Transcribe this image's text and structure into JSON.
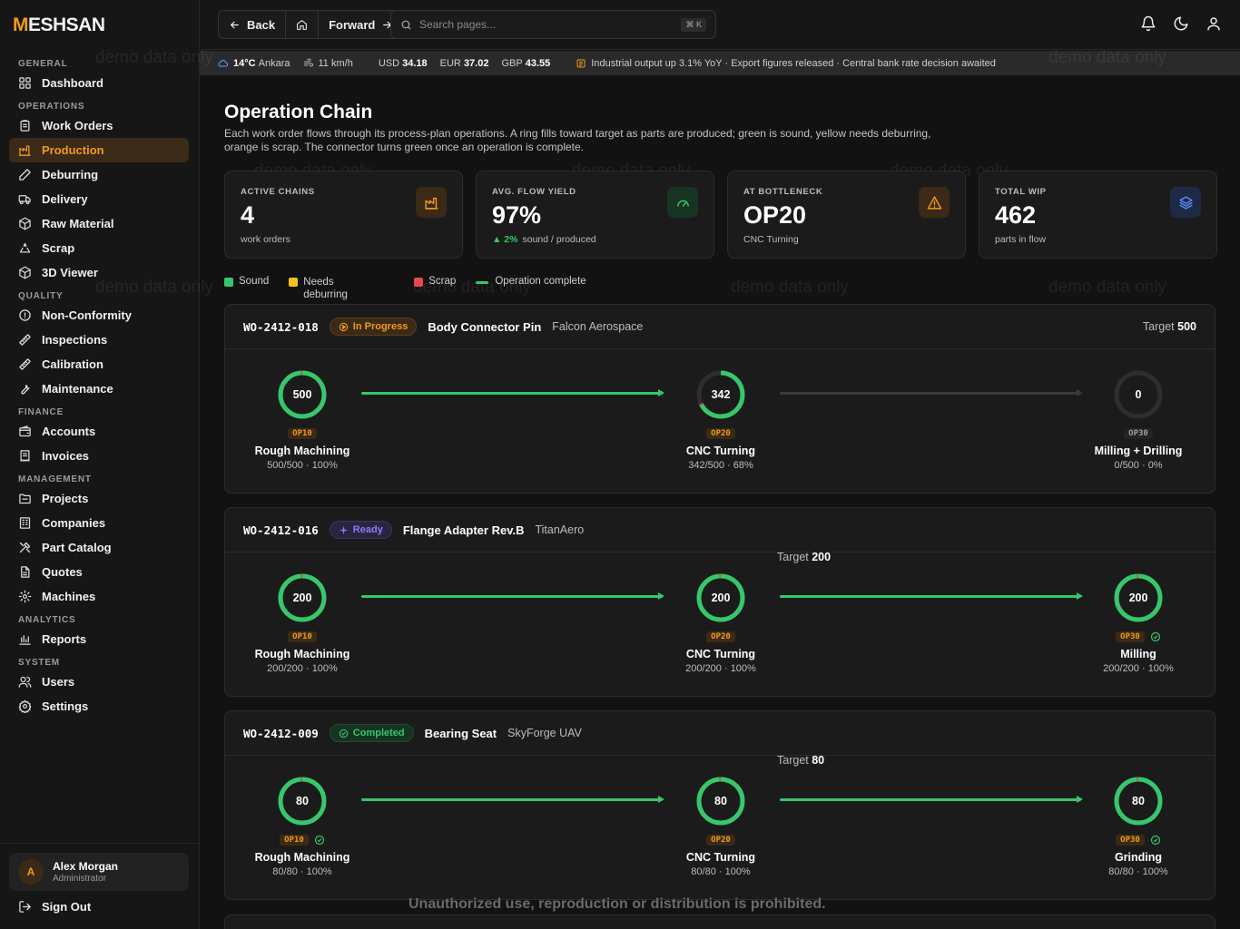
{
  "brand": {
    "name": "MESHSAN",
    "initial": "M",
    "rest": "ESHSAN"
  },
  "nav": {
    "sections": [
      {
        "label": "GENERAL",
        "items": [
          {
            "label": "Dashboard",
            "icon": "grid-icon"
          }
        ]
      },
      {
        "label": "OPERATIONS",
        "items": [
          {
            "label": "Work Orders",
            "icon": "clipboard-icon"
          },
          {
            "label": "Production",
            "icon": "factory-icon",
            "active": true
          },
          {
            "label": "Deburring",
            "icon": "pen-icon"
          },
          {
            "label": "Delivery",
            "icon": "truck-icon"
          },
          {
            "label": "Raw Material",
            "icon": "package-icon"
          },
          {
            "label": "Scrap",
            "icon": "recycle-icon"
          },
          {
            "label": "3D Viewer",
            "icon": "cube-icon"
          }
        ]
      },
      {
        "label": "QUALITY",
        "items": [
          {
            "label": "Non-Conformity",
            "icon": "alert-circle-icon"
          },
          {
            "label": "Inspections",
            "icon": "ruler-icon"
          },
          {
            "label": "Calibration",
            "icon": "ruler-icon"
          },
          {
            "label": "Maintenance",
            "icon": "wrench-icon"
          }
        ]
      },
      {
        "label": "FINANCE",
        "items": [
          {
            "label": "Accounts",
            "icon": "wallet-icon"
          },
          {
            "label": "Invoices",
            "icon": "receipt-icon"
          }
        ]
      },
      {
        "label": "MANAGEMENT",
        "items": [
          {
            "label": "Projects",
            "icon": "folder-icon"
          },
          {
            "label": "Companies",
            "icon": "building-icon"
          },
          {
            "label": "Part Catalog",
            "icon": "tools-icon"
          },
          {
            "label": "Quotes",
            "icon": "file-icon"
          },
          {
            "label": "Machines",
            "icon": "cog-icon"
          }
        ]
      },
      {
        "label": "ANALYTICS",
        "items": [
          {
            "label": "Reports",
            "icon": "bar-chart-icon"
          }
        ]
      },
      {
        "label": "SYSTEM",
        "items": [
          {
            "label": "Users",
            "icon": "users-icon"
          },
          {
            "label": "Settings",
            "icon": "gear-icon"
          }
        ]
      }
    ]
  },
  "user": {
    "initial": "A",
    "name": "Alex Morgan",
    "role": "Administrator"
  },
  "signout": "Sign Out",
  "topbar": {
    "back": "Back",
    "forward": "Forward",
    "search_placeholder": "Search pages...",
    "shortcut": "⌘ K"
  },
  "ticker": {
    "temp": "14°C",
    "city": "Ankara",
    "wind": "11 km/h",
    "usd_label": "USD",
    "usd": "34.18",
    "eur_label": "EUR",
    "eur": "37.02",
    "gbp_label": "GBP",
    "gbp": "43.55",
    "news": "Industrial output up 3.1% YoY · Export figures released · Central bank rate decision awaited"
  },
  "page": {
    "title": "Operation Chain",
    "description": "Each work order flows through its process-plan operations. A ring fills toward target as parts are produced; green is sound, yellow needs deburring, orange is scrap. The connector turns green once an operation is complete."
  },
  "stats": [
    {
      "label": "ACTIVE CHAINS",
      "value": "4",
      "sub": "work orders",
      "icon": "factory-icon",
      "color": "#f29a1c",
      "bg": "#3a2a17"
    },
    {
      "label": "AVG. FLOW YIELD",
      "value": "97%",
      "delta": "▲ 2%",
      "sub": "sound / produced",
      "icon": "gauge-icon",
      "color": "#37c76b",
      "bg": "#173322"
    },
    {
      "label": "AT BOTTLENECK",
      "value": "OP20",
      "sub": "CNC Turning",
      "icon": "warning-icon",
      "color": "#f29a1c",
      "bg": "#3a2a17"
    },
    {
      "label": "TOTAL WIP",
      "value": "462",
      "sub": "parts in flow",
      "icon": "layers-icon",
      "color": "#5b8cf7",
      "bg": "#1e2a44"
    }
  ],
  "legend": {
    "sound": "Sound",
    "deburr": "Needs deburring",
    "scrap": "Scrap",
    "complete": "Operation complete"
  },
  "colors": {
    "sound": "#37c76b",
    "deburr": "#f2c21c",
    "scrap": "#e5484d",
    "accent": "#f29a1c"
  },
  "chains": [
    {
      "wo": "WO-2412-018",
      "status": "In Progress",
      "part": "Body Connector Pin",
      "customer": "Falcon Aerospace",
      "target_label": "Target",
      "target": "500",
      "ops": [
        {
          "code": "OP10",
          "name": "Rough Machining",
          "value": "500",
          "sub": "500/500 · 100%",
          "fraction": 1.0,
          "scrap": 0.01,
          "done": false
        },
        {
          "code": "OP20",
          "name": "CNC Turning",
          "value": "342",
          "sub": "342/500 · 68%",
          "fraction": 0.68,
          "scrap": 0.01,
          "done": false
        },
        {
          "code": "OP30",
          "name": "Milling + Drilling",
          "value": "0",
          "sub": "0/500 · 0%",
          "fraction": 0,
          "scrap": 0,
          "done": false
        }
      ],
      "connectors": [
        true,
        false
      ]
    },
    {
      "wo": "WO-2412-016",
      "status": "Ready",
      "part": "Flange Adapter Rev.B",
      "customer": "TitanAero",
      "target_label": "Target",
      "target": "200",
      "ops": [
        {
          "code": "OP10",
          "name": "Rough Machining",
          "value": "200",
          "sub": "200/200 · 100%",
          "fraction": 1.0,
          "scrap": 0.01,
          "done": false
        },
        {
          "code": "OP20",
          "name": "CNC Turning",
          "value": "200",
          "sub": "200/200 · 100%",
          "fraction": 1.0,
          "scrap": 0.01,
          "done": false
        },
        {
          "code": "OP30",
          "name": "Milling",
          "value": "200",
          "sub": "200/200 · 100%",
          "fraction": 1.0,
          "scrap": 0.01,
          "done": true
        }
      ],
      "connectors": [
        true,
        true
      ]
    },
    {
      "wo": "WO-2412-009",
      "status": "Completed",
      "part": "Bearing Seat",
      "customer": "SkyForge UAV",
      "target_label": "Target",
      "target": "80",
      "ops": [
        {
          "code": "OP10",
          "name": "Rough Machining",
          "value": "80",
          "sub": "80/80 · 100%",
          "fraction": 1.0,
          "scrap": 0.01,
          "done": true
        },
        {
          "code": "OP20",
          "name": "CNC Turning",
          "value": "80",
          "sub": "80/80 · 100%",
          "fraction": 1.0,
          "scrap": 0.01,
          "done": false
        },
        {
          "code": "OP30",
          "name": "Grinding",
          "value": "80",
          "sub": "80/80 · 100%",
          "fraction": 1.0,
          "scrap": 0.01,
          "done": true
        }
      ],
      "connectors": [
        true,
        true
      ]
    }
  ],
  "watermark": "demo data only",
  "warning": "Unauthorized use, reproduction or distribution is prohibited."
}
